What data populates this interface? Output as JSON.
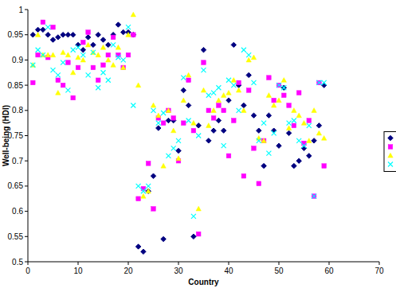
{
  "chart_data": {
    "type": "scatter",
    "x_label": "Country",
    "y_label": "Well-being (HDI)",
    "x": [
      1,
      2,
      3,
      4,
      5,
      6,
      7,
      8,
      9,
      10,
      11,
      12,
      13,
      14,
      15,
      16,
      17,
      18,
      19,
      20,
      21,
      22,
      23,
      24,
      25,
      26,
      27,
      28,
      29,
      30,
      31,
      32,
      33,
      34,
      35,
      36,
      37,
      38,
      39,
      40,
      41,
      42,
      43,
      44,
      45,
      46,
      47,
      48,
      49,
      50,
      51,
      52,
      53,
      54,
      55,
      56,
      57,
      58,
      59
    ],
    "series": [
      {
        "color": "#000080",
        "marker": "diamond",
        "values": [
          0.95,
          0.96,
          0.96,
          0.95,
          0.94,
          0.945,
          0.95,
          0.95,
          0.95,
          0.93,
          0.92,
          0.945,
          0.93,
          0.95,
          0.94,
          0.93,
          0.95,
          0.97,
          0.955,
          0.955,
          0.95,
          0.53,
          0.52,
          0.64,
          0.67,
          0.765,
          0.545,
          0.78,
          0.78,
          0.72,
          0.84,
          0.81,
          0.55,
          0.77,
          0.92,
          0.74,
          0.76,
          0.78,
          0.76,
          0.82,
          0.93,
          0.85,
          0.81,
          0.87,
          0.79,
          0.76,
          0.69,
          0.79,
          0.76,
          0.73,
          0.845,
          0.755,
          0.69,
          0.7,
          0.725,
          0.71,
          0.74,
          0.77,
          0.85
        ]
      },
      {
        "color": "#ff00ff",
        "marker": "square",
        "values": [
          0.855,
          0.91,
          0.975,
          0.905,
          0.965,
          0.86,
          0.85,
          0.895,
          0.825,
          0.885,
          0.935,
          0.955,
          0.885,
          0.86,
          0.89,
          0.91,
          0.945,
          0.91,
          0.885,
          0.91,
          0.95,
          0.625,
          0.645,
          0.695,
          0.605,
          0.785,
          0.775,
          0.8,
          0.785,
          0.7,
          0.775,
          0.86,
          0.76,
          0.555,
          0.895,
          0.8,
          0.785,
          0.81,
          0.8,
          0.71,
          0.78,
          0.855,
          0.67,
          0.84,
          0.725,
          0.655,
          0.74,
          0.865,
          0.82,
          0.85,
          0.83,
          0.81,
          0.77,
          0.835,
          0.735,
          0.78,
          0.63,
          0.855,
          0.69
        ]
      },
      {
        "color": "#ffff00",
        "marker": "triangle",
        "values": [
          0.89,
          0.95,
          0.91,
          0.91,
          0.91,
          0.835,
          0.915,
          0.91,
          0.875,
          0.905,
          0.9,
          0.93,
          0.915,
          0.91,
          0.925,
          0.9,
          0.89,
          0.925,
          0.885,
          0.95,
          0.99,
          0.85,
          0.63,
          0.64,
          0.81,
          0.79,
          0.69,
          0.8,
          0.76,
          0.705,
          0.82,
          0.87,
          0.775,
          0.605,
          0.84,
          0.77,
          0.8,
          0.82,
          0.83,
          0.835,
          0.86,
          0.84,
          0.8,
          0.9,
          0.905,
          0.745,
          0.74,
          0.83,
          0.81,
          0.82,
          0.86,
          0.765,
          0.8,
          0.79,
          0.775,
          0.74,
          0.8,
          0.755,
          0.745
        ]
      },
      {
        "color": "#00ffff",
        "marker": "x",
        "values": [
          0.89,
          0.92,
          0.91,
          0.965,
          0.88,
          0.87,
          0.895,
          0.84,
          0.92,
          0.925,
          0.91,
          0.87,
          0.915,
          0.845,
          0.875,
          0.86,
          0.93,
          0.905,
          0.9,
          0.965,
          0.81,
          0.65,
          0.64,
          0.65,
          0.8,
          0.775,
          0.795,
          0.71,
          0.725,
          0.74,
          0.865,
          0.78,
          0.59,
          0.75,
          0.88,
          0.83,
          0.835,
          0.845,
          0.73,
          0.86,
          0.85,
          0.8,
          0.92,
          0.91,
          0.855,
          0.74,
          0.775,
          0.715,
          0.755,
          0.85,
          0.845,
          0.775,
          0.78,
          0.74,
          0.73,
          0.77,
          0.63,
          0.855,
          0.855
        ]
      }
    ],
    "xlim": [
      0,
      70
    ],
    "xticks": [
      0,
      10,
      20,
      30,
      40,
      50,
      60,
      70
    ],
    "ylim": [
      0.5,
      1
    ],
    "yticks": [
      0.5,
      0.55,
      0.6,
      0.65,
      0.7,
      0.75,
      0.8,
      0.85,
      0.9,
      0.95,
      1
    ],
    "grid": false,
    "legend": "right"
  }
}
